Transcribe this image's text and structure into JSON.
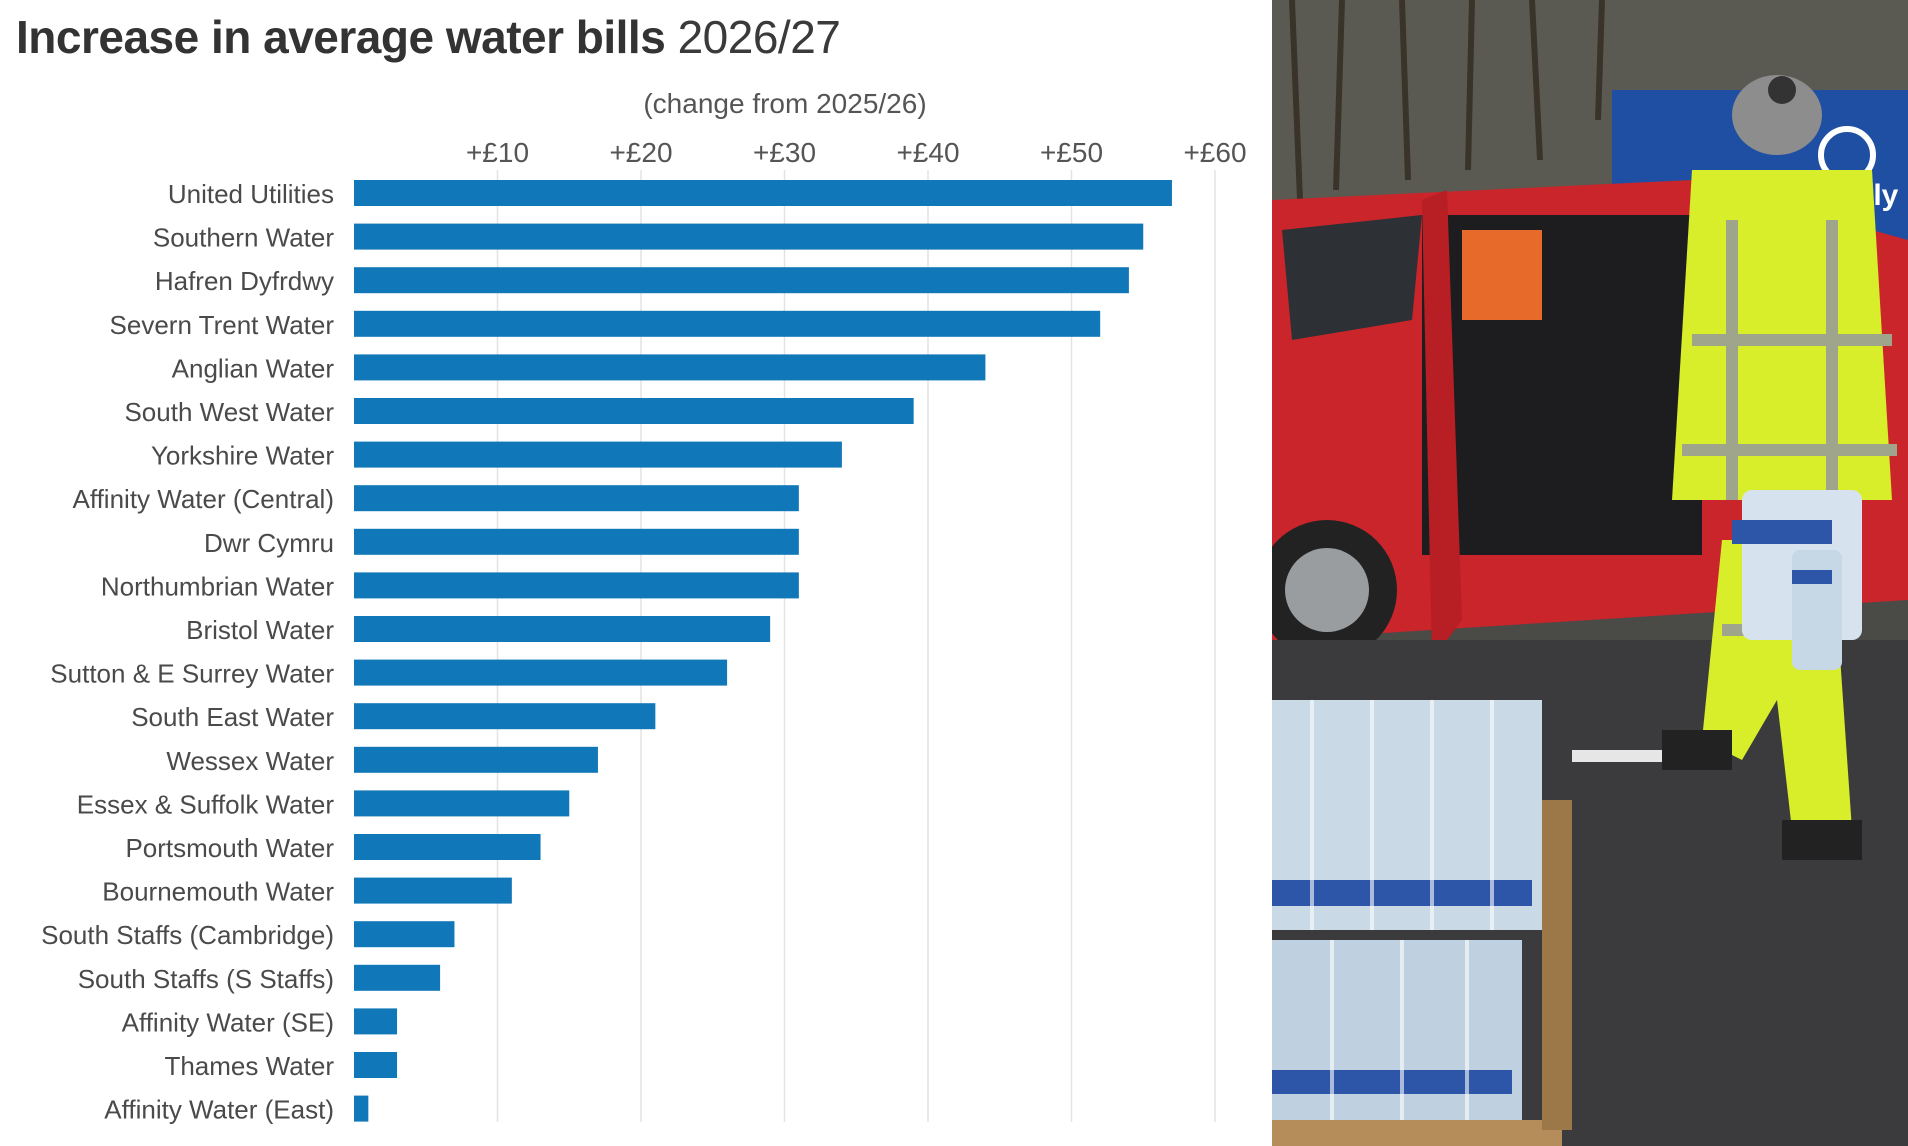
{
  "chart_data": {
    "type": "bar",
    "orientation": "horizontal",
    "title": "Increase in average water bills",
    "title_suffix": "2026/27",
    "subtitle": "(change from 2025/26)",
    "xlabel": "",
    "ylabel": "",
    "xlim": [
      0,
      61
    ],
    "x_ticks": [
      10,
      20,
      30,
      40,
      50,
      60
    ],
    "x_tick_labels": [
      "+£10",
      "+£20",
      "+£30",
      "+£40",
      "+£50",
      "+£60"
    ],
    "x_axis_position": "top",
    "grid": true,
    "legend": "none",
    "bar_color": "#1077b8",
    "categories": [
      "United Utilities",
      "Southern Water",
      "Hafren Dyfrdwy",
      "Severn Trent Water",
      "Anglian Water",
      "South West Water",
      "Yorkshire Water",
      "Affinity Water (Central)",
      "Dwr Cymru",
      "Northumbrian Water",
      "Bristol Water",
      "Sutton & E Surrey Water",
      "South East Water",
      "Wessex Water",
      "Essex & Suffolk Water",
      "Portsmouth Water",
      "Bournemouth Water",
      "South Staffs (Cambridge)",
      "South Staffs (S Staffs)",
      "Affinity Water (SE)",
      "Thames Water",
      "Affinity Water (East)"
    ],
    "values": [
      57,
      55,
      54,
      52,
      44,
      39,
      34,
      31,
      31,
      31,
      29,
      26,
      21,
      17,
      15,
      13,
      11,
      7,
      6,
      3,
      3,
      1
    ]
  },
  "photo": {
    "description_icon": "water-distribution-photo",
    "colors": {
      "car": "#d42a2e",
      "jacket": "#d8ee2a",
      "ground": "#3b3b3d",
      "sign": "#1f4fa3"
    }
  }
}
